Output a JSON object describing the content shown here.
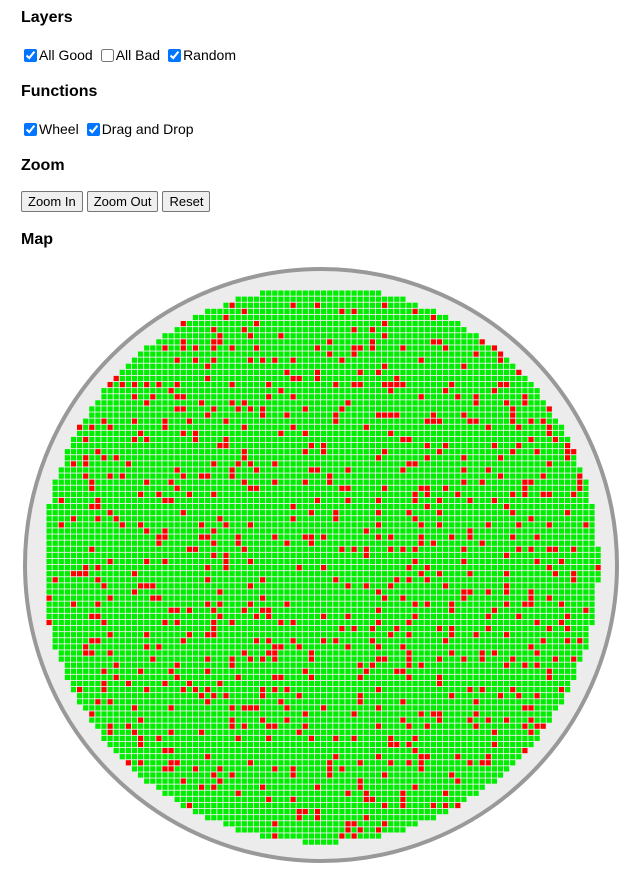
{
  "layers": {
    "title": "Layers",
    "options": [
      {
        "label": "All Good",
        "checked": true
      },
      {
        "label": "All Bad",
        "checked": false
      },
      {
        "label": "Random",
        "checked": true
      }
    ]
  },
  "functions": {
    "title": "Functions",
    "options": [
      {
        "label": "Wheel",
        "checked": true
      },
      {
        "label": "Drag and Drop",
        "checked": true
      }
    ]
  },
  "zoom": {
    "title": "Zoom",
    "zoom_in_label": "Zoom In",
    "zoom_out_label": "Zoom Out",
    "reset_label": "Reset"
  },
  "map": {
    "title": "Map",
    "colors": {
      "good": "#00ee00",
      "bad": "#ff0000",
      "grid": "#ffffff",
      "wafer_fill": "#ececec",
      "wafer_border": "#999999"
    }
  }
}
